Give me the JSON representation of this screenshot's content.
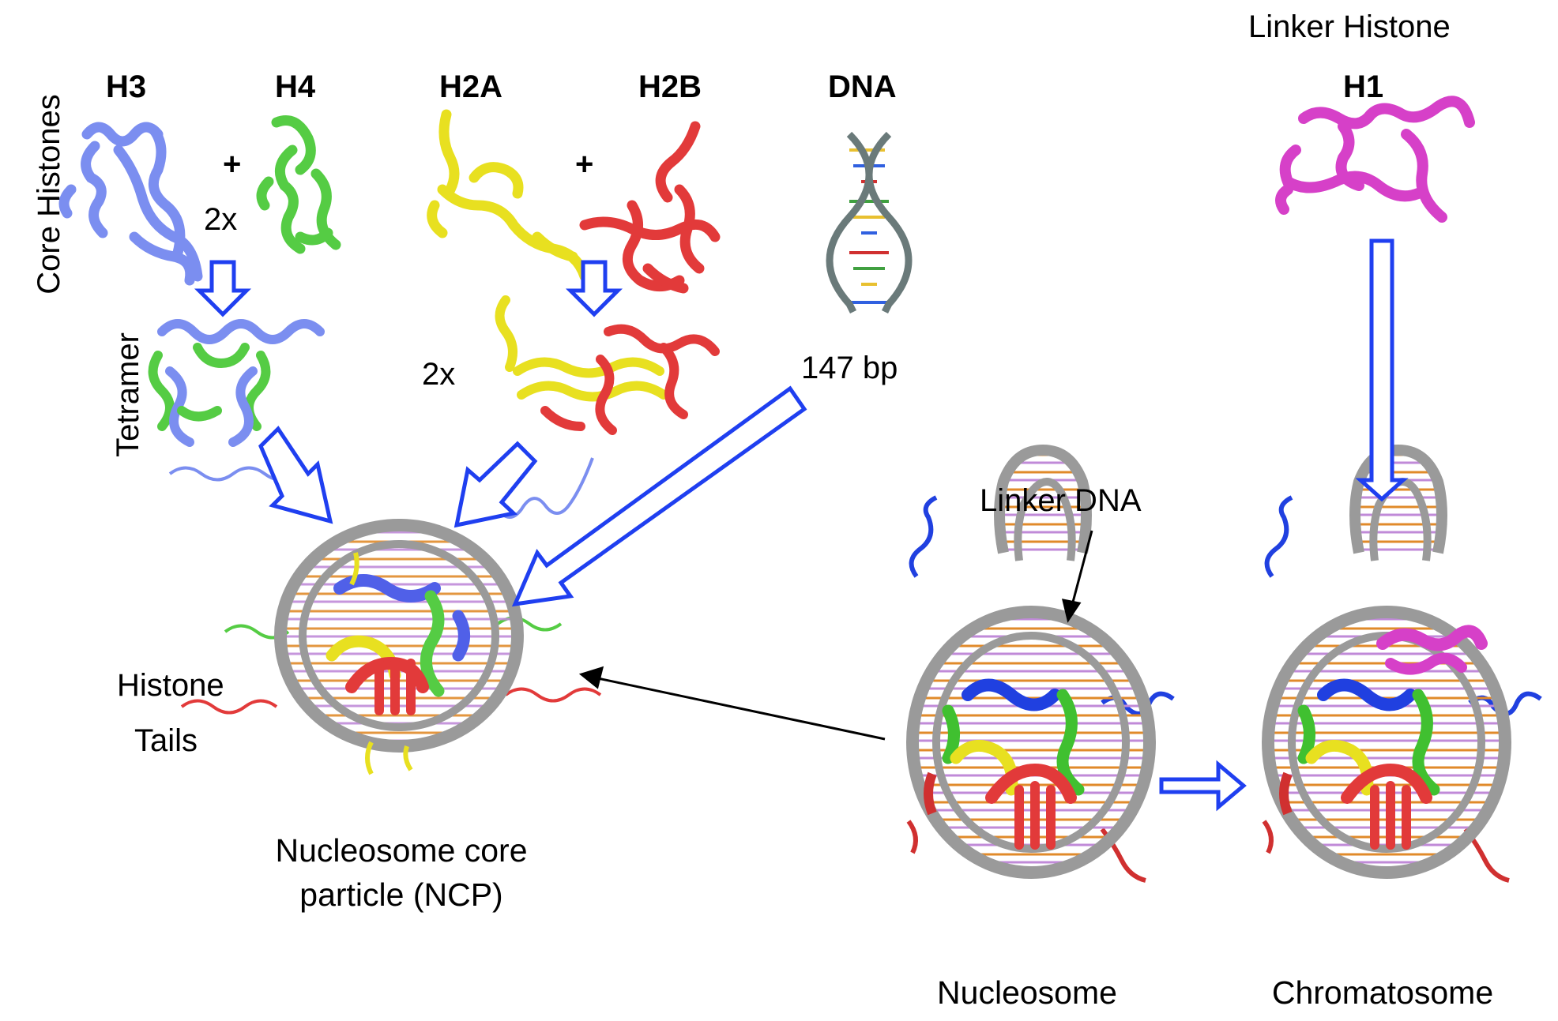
{
  "figure": {
    "proteins": {
      "h3": "H3",
      "h4": "H4",
      "h2a": "H2A",
      "h2b": "H2B",
      "dna": "DNA",
      "h1": "H1"
    },
    "linker_histone": "Linker Histone",
    "core_histones": "Core Histones",
    "tetramer": "Tetramer",
    "plus": "+",
    "two_x": "2x",
    "bp147": "147 bp",
    "histone_tails_line1": "Histone",
    "histone_tails_line2": "Tails",
    "ncp_line1": "Nucleosome core",
    "ncp_line2": "particle (NCP)",
    "linker_dna": "Linker DNA",
    "nucleosome": "Nucleosome",
    "chromatosome": "Chromatosome"
  },
  "colors": {
    "h3": "#7b8ef0",
    "h4": "#55cc44",
    "h2a": "#e8e020",
    "h2b": "#e23a3a",
    "h1": "#d640c8",
    "dna_backbone": "#9a9a9a",
    "arrow": "#1f3ff0",
    "dna_base_orange": "#e08a2a",
    "dna_base_purple": "#c08ad8",
    "nuc_blue": "#2040e0"
  }
}
